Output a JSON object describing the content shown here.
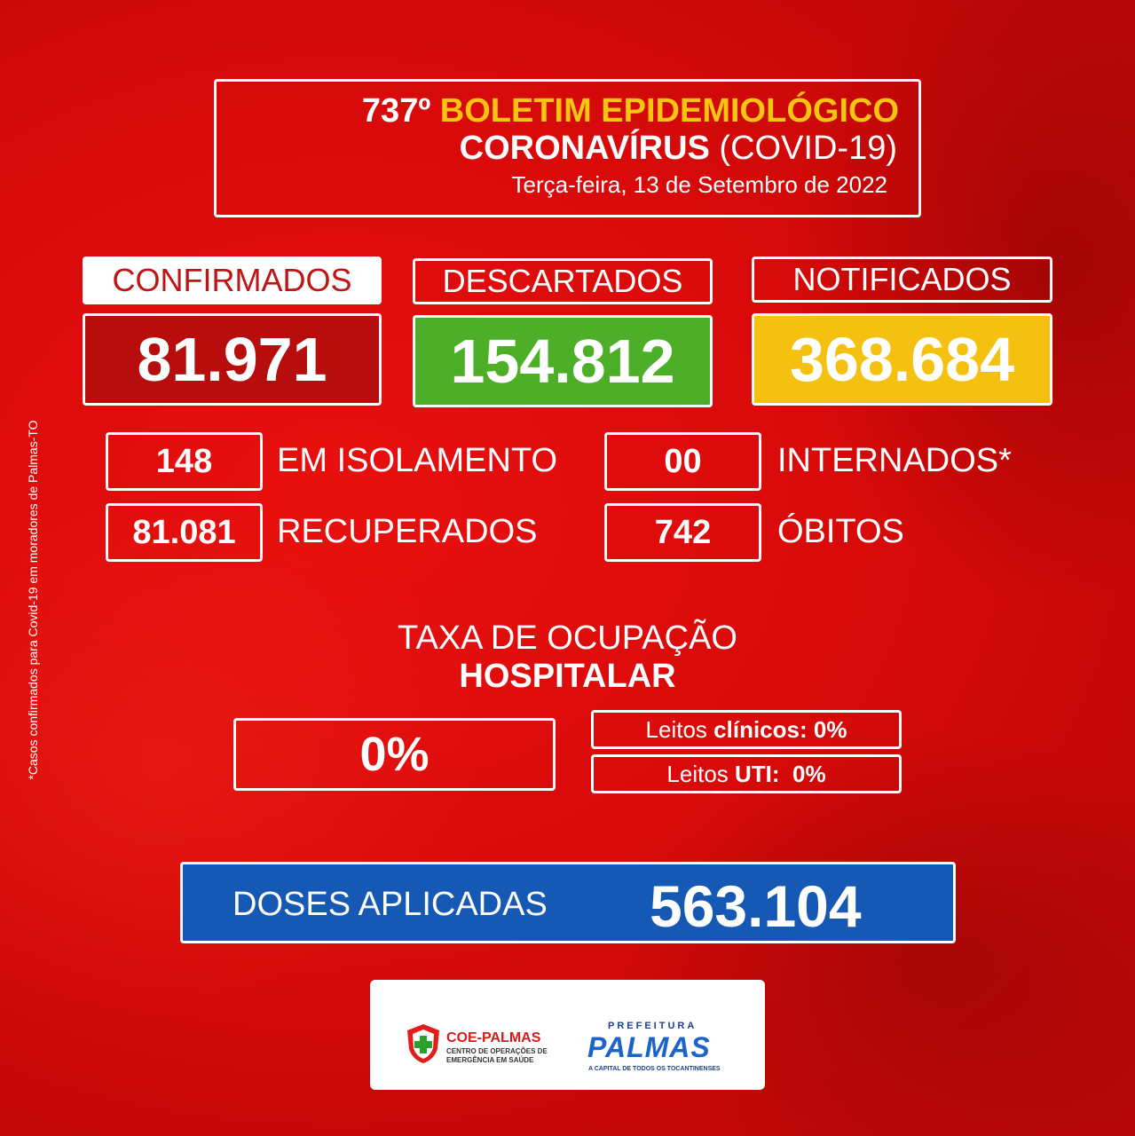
{
  "header": {
    "edition": "737º",
    "title": "BOLETIM EPIDEMIOLÓGICO",
    "subtitle_bold": "CORONAVÍRUS",
    "subtitle_rest": "(COVID-19)",
    "date": "Terça-feira, 13 de Setembro de 2022"
  },
  "totals": {
    "confirmados": {
      "label": "CONFIRMADOS",
      "value": "81.971"
    },
    "descartados": {
      "label": "DESCARTADOS",
      "value": "154.812"
    },
    "notificados": {
      "label": "NOTIFICADOS",
      "value": "368.684"
    }
  },
  "details": {
    "isolamento": {
      "value": "148",
      "label": "EM ISOLAMENTO"
    },
    "internados": {
      "value": "00",
      "label": "INTERNADOS*"
    },
    "recuperados": {
      "value": "81.081",
      "label": "RECUPERADOS"
    },
    "obitos": {
      "value": "742",
      "label": "ÓBITOS"
    }
  },
  "occupancy": {
    "title_line1": "TAXA DE OCUPAÇÃO",
    "title_line2": "HOSPITALAR",
    "total": "0%",
    "clinicos_prefix": "Leitos ",
    "clinicos_bold": "clínicos:",
    "clinicos_value": " 0%",
    "uti_prefix": "Leitos ",
    "uti_bold": "UTI:",
    "uti_value": "  0%"
  },
  "doses": {
    "label": "DOSES APLICADAS",
    "value": "563.104"
  },
  "side_note": "*Casos confirmados para Covid-19 em moradores de Palmas-TO",
  "logos": {
    "coe_name": "COE-PALMAS",
    "coe_line1": "CENTRO DE OPERAÇÕES DE",
    "coe_line2": "EMERGÊNCIA EM SAÚDE",
    "pref_top": "PREFEITURA",
    "pref_name": "PALMAS",
    "pref_tagline": "A CAPITAL DE TODOS OS TOCANTINENSES"
  },
  "colors": {
    "background": "#d90a0a",
    "confirm_box": "#b70d0d",
    "descartados_box": "#4caf27",
    "notificados_box": "#f5c110",
    "doses_box": "#1559b4",
    "title_yellow": "#f7c412"
  }
}
